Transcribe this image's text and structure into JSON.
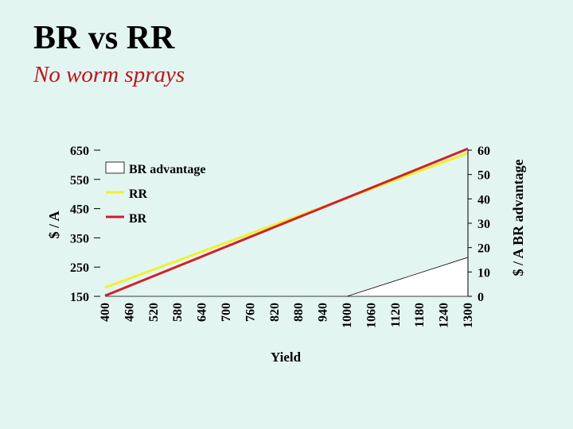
{
  "title": "BR vs RR",
  "subtitle": "No worm sprays",
  "colors": {
    "background": "#e3f5f1",
    "subtitle": "#c0141c",
    "rr_line": "#f0f030",
    "br_line": "#d0202a",
    "advantage_fill": "#ffffff"
  },
  "chart_data": {
    "type": "line",
    "xlabel": "Yield",
    "ylabel": "$ / A",
    "y2label": "$ / A BR advantage",
    "x_ticks": [
      "400",
      "460",
      "520",
      "580",
      "640",
      "700",
      "760",
      "820",
      "880",
      "940",
      "1000",
      "1060",
      "1120",
      "1180",
      "1240",
      "1300"
    ],
    "y_ticks": [
      "150",
      "250",
      "350",
      "450",
      "550",
      "650"
    ],
    "y2_ticks": [
      "0",
      "10",
      "20",
      "30",
      "40",
      "50",
      "60"
    ],
    "xlim": [
      400,
      1300
    ],
    "ylim": [
      150,
      650
    ],
    "y2lim": [
      0,
      60
    ],
    "legend_position": "top-left",
    "series": [
      {
        "name": "BR advantage",
        "type": "area",
        "axis": "right",
        "x": [
          400,
          1000,
          1300
        ],
        "values": [
          0,
          0,
          16
        ]
      },
      {
        "name": "RR",
        "type": "line",
        "axis": "left",
        "x": [
          400,
          1300
        ],
        "values": [
          180,
          640
        ]
      },
      {
        "name": "BR",
        "type": "line",
        "axis": "left",
        "x": [
          400,
          1300
        ],
        "values": [
          152,
          655
        ]
      }
    ]
  }
}
